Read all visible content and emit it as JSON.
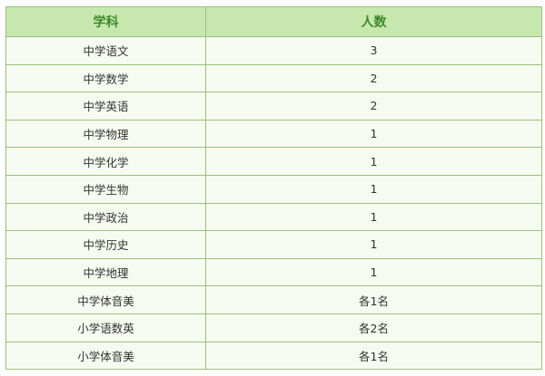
{
  "table": {
    "headers": [
      "学科",
      "人数"
    ],
    "rows": [
      [
        "中学语文",
        "3"
      ],
      [
        "中学数学",
        "2"
      ],
      [
        "中学英语",
        "2"
      ],
      [
        "中学物理",
        "1"
      ],
      [
        "中学化学",
        "1"
      ],
      [
        "中学生物",
        "1"
      ],
      [
        "中学政治",
        "1"
      ],
      [
        "中学历史",
        "1"
      ],
      [
        "中学地理",
        "1"
      ],
      [
        "中学体音美",
        "各1名"
      ],
      [
        "小学语数英",
        "各2名"
      ],
      [
        "小学体音美",
        "各1名"
      ]
    ]
  },
  "colors": {
    "header_bg": "#c6e8ae",
    "header_text": "#3f8a2c",
    "row_bg": "#f6fbf1",
    "border": "#9cbf7a"
  }
}
